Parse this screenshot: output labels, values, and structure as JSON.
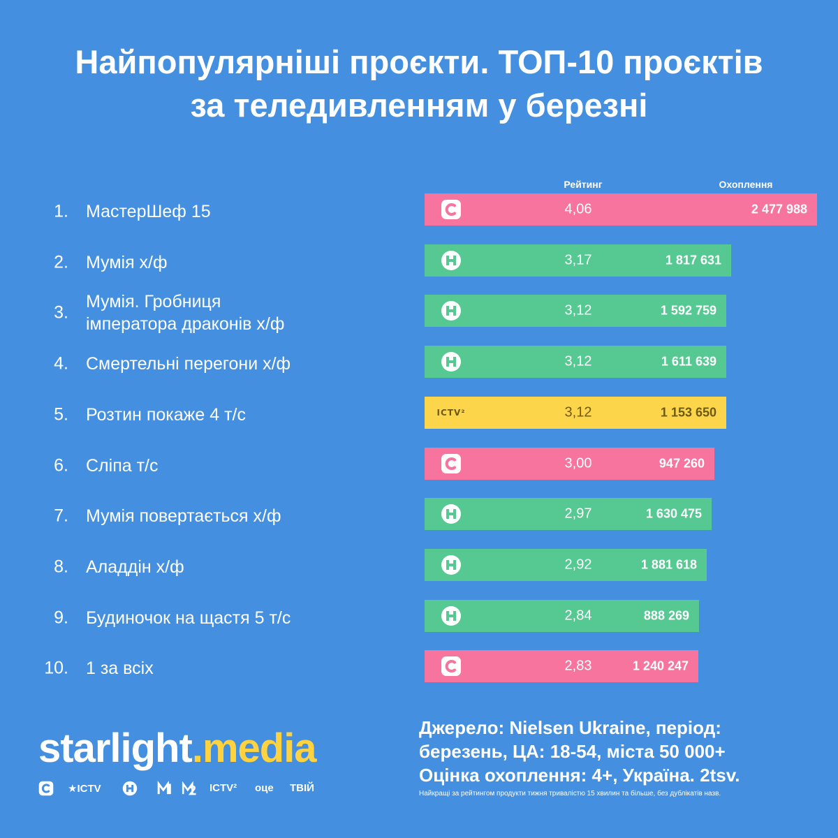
{
  "header": {
    "title_line1": "Найпопулярніші проєкти. ТОП-10 проєктів",
    "title_line2": "за теледивленням у березні"
  },
  "chart_data": {
    "type": "table",
    "columns": {
      "rating": "Рейтинг",
      "reach": "Охоплення"
    },
    "rows": [
      {
        "rank": "1.",
        "name_lines": [
          "МастерШеф 15"
        ],
        "channel": "stb-icon",
        "rating": "4,06",
        "reach": "2 477 988",
        "value": 4.06
      },
      {
        "rank": "2.",
        "name_lines": [
          "Мумія х/ф"
        ],
        "channel": "novy-icon",
        "rating": "3,17",
        "reach": "1 817 631",
        "value": 3.17
      },
      {
        "rank": "3.",
        "name_lines": [
          "Мумія. Гробниця",
          "імператора драконів х/ф"
        ],
        "channel": "novy-icon",
        "rating": "3,12",
        "reach": "1 592 759",
        "value": 3.12
      },
      {
        "rank": "4.",
        "name_lines": [
          "Смертельні перегони х/ф"
        ],
        "channel": "novy-icon",
        "rating": "3,12",
        "reach": "1 611 639",
        "value": 3.12
      },
      {
        "rank": "5.",
        "name_lines": [
          "Розтин покаже 4 т/с"
        ],
        "channel": "ictv2-icon",
        "channel_label": "ICTV²",
        "rating": "3,12",
        "reach": "1 153 650",
        "value": 3.12
      },
      {
        "rank": "6.",
        "name_lines": [
          "Сліпа т/с"
        ],
        "channel": "stb-icon",
        "rating": "3,00",
        "reach": "947 260",
        "value": 3.0
      },
      {
        "rank": "7.",
        "name_lines": [
          "Мумія повертається х/ф"
        ],
        "channel": "novy-icon",
        "rating": "2,97",
        "reach": "1 630 475",
        "value": 2.97
      },
      {
        "rank": "8.",
        "name_lines": [
          "Аладдін х/ф"
        ],
        "channel": "novy-icon",
        "rating": "2,92",
        "reach": "1 881 618",
        "value": 2.92
      },
      {
        "rank": "9.",
        "name_lines": [
          "Будиночок на щастя 5 т/с"
        ],
        "channel": "novy-icon",
        "rating": "2,84",
        "reach": "888 269",
        "value": 2.84
      },
      {
        "rank": "10.",
        "name_lines": [
          "1 за всіх"
        ],
        "channel": "stb-icon",
        "rating": "2,83",
        "reach": "1 240 247",
        "value": 2.83
      }
    ]
  },
  "colors": {
    "background": "#448fdf",
    "stb": "#f6749e",
    "novy": "#56c993",
    "ictv2": "#fdd54a",
    "brand_accent": "#ffd23f"
  },
  "footer": {
    "brand_part1": "starlight",
    "brand_dot": ".",
    "brand_part2": "media",
    "channels": [
      {
        "icon": "stb-icon"
      },
      {
        "icon": "ictv-icon",
        "label": "★ICTV"
      },
      {
        "icon": "novy-icon"
      },
      {
        "icon": "m1-icon"
      },
      {
        "icon": "m2-icon"
      },
      {
        "icon": "ictv2-icon",
        "label": "ICTV²"
      },
      {
        "icon": "oce-icon",
        "label": "оце"
      },
      {
        "icon": "tviy-icon",
        "label": "ТВІЙ"
      }
    ],
    "source_line1": "Джерело: Nielsen Ukraine, період:",
    "source_line2": "березень, ЦА: 18-54, міста 50 000+",
    "source_line3": "Оцінка охоплення: 4+, Україна. 2tsv.",
    "footnote": "Найкращі за рейтингом продукти тижня тривалістю 15 хвилин та більше, без дублікатів назв."
  }
}
